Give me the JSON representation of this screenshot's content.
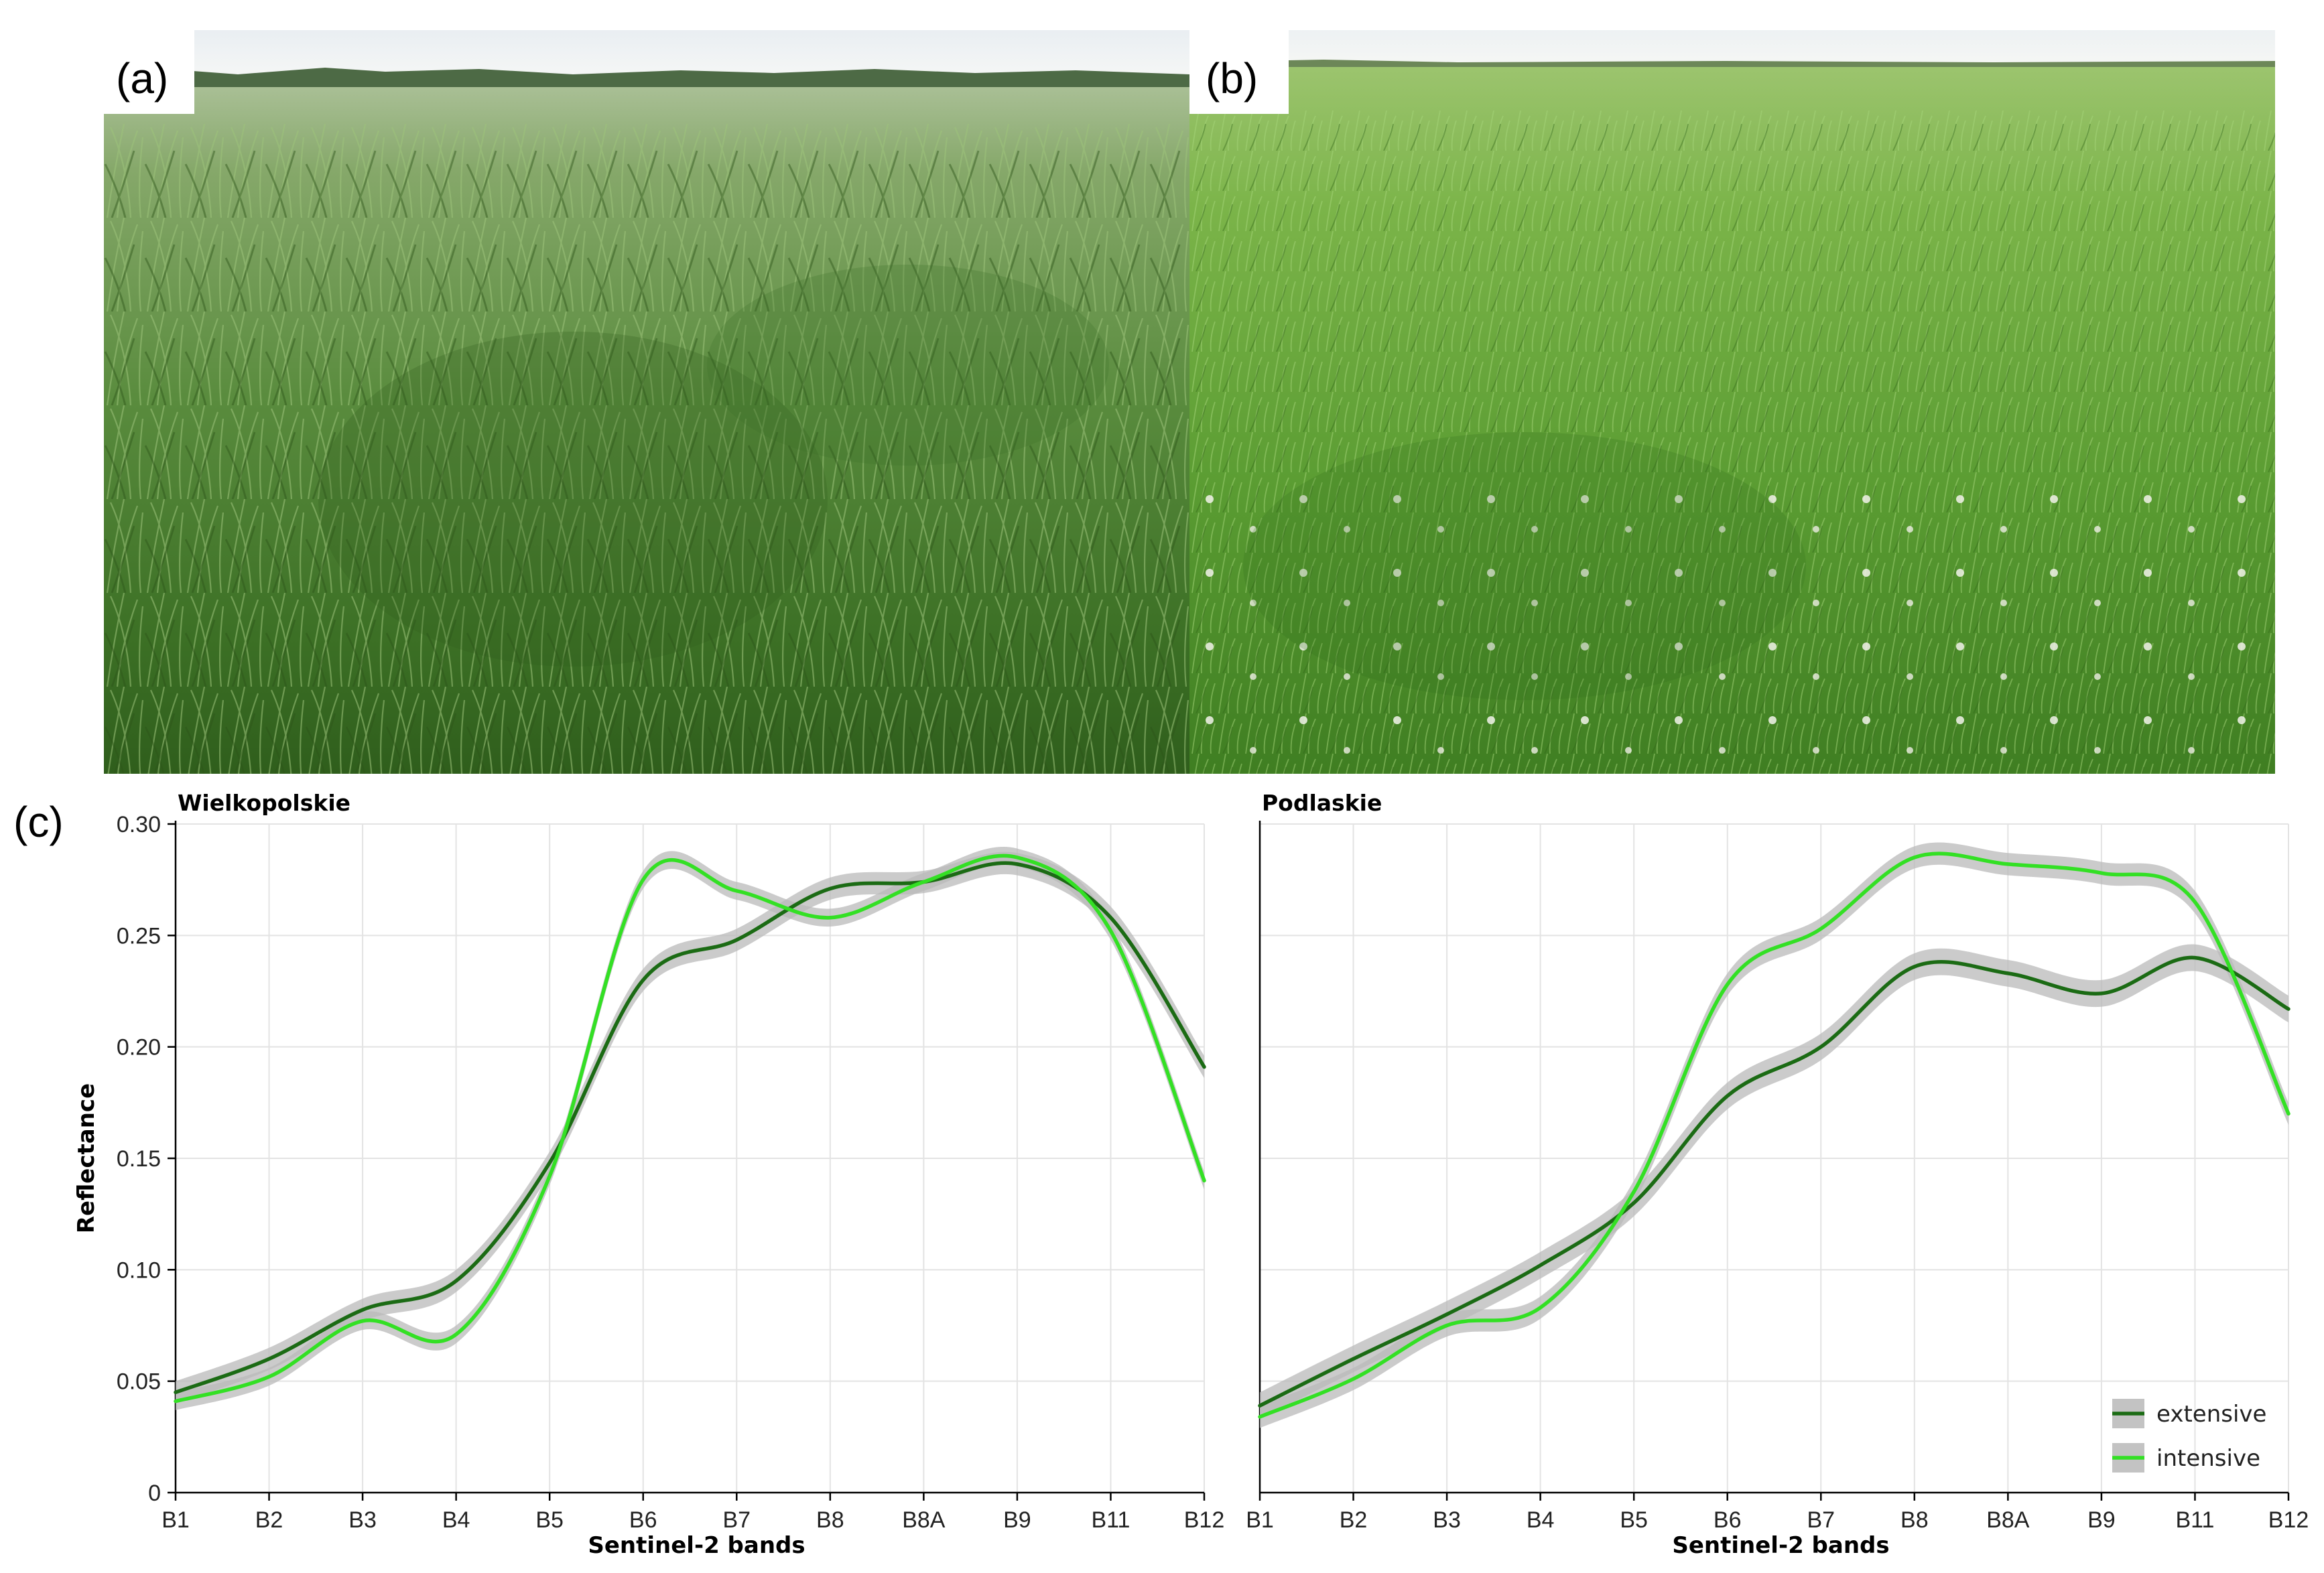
{
  "panels": {
    "a_label": "(a)",
    "b_label": "(b)",
    "c_label": "(c)"
  },
  "colors": {
    "extensive": "#1b6b14",
    "intensive": "#33e024",
    "band": "#b9b9b9",
    "red_tick": "#e0262b",
    "black_tick": "#222222"
  },
  "chart_data": [
    {
      "type": "line",
      "title": "Wielkopolskie",
      "xlabel": "Sentinel-2 bands",
      "ylabel": "Reflectance",
      "categories": [
        "B1",
        "B2",
        "B3",
        "B4",
        "B5",
        "B6",
        "B7",
        "B8",
        "B8A",
        "B9",
        "B11",
        "B12"
      ],
      "red_categories": [
        "B2",
        "B4",
        "B6",
        "B7",
        "B8",
        "B8A",
        "B9",
        "B11",
        "B12"
      ],
      "ylim": [
        0,
        0.3
      ],
      "yticks": [
        "0",
        "0.05",
        "0.10",
        "0.15",
        "0.20",
        "0.25",
        "0.30"
      ],
      "grid": true,
      "series": [
        {
          "name": "extensive",
          "values": [
            0.045,
            0.06,
            0.082,
            0.095,
            0.148,
            0.23,
            0.248,
            0.271,
            0.274,
            0.282,
            0.258,
            0.191
          ],
          "band": 0.005
        },
        {
          "name": "intensive",
          "values": [
            0.041,
            0.052,
            0.077,
            0.071,
            0.142,
            0.275,
            0.27,
            0.258,
            0.274,
            0.285,
            0.252,
            0.14
          ],
          "band": 0.004
        }
      ]
    },
    {
      "type": "line",
      "title": "Podlaskie",
      "xlabel": "Sentinel-2 bands",
      "ylabel": "",
      "categories": [
        "B1",
        "B2",
        "B3",
        "B4",
        "B5",
        "B6",
        "B7",
        "B8",
        "B8A",
        "B9",
        "B11",
        "B12"
      ],
      "red_categories": [
        "B2",
        "B4",
        "B6",
        "B7",
        "B8",
        "B8A",
        "B9",
        "B11",
        "B12"
      ],
      "ylim": [
        0,
        0.3
      ],
      "grid": true,
      "legend": {
        "position": "bottom-right",
        "entries": [
          "extensive",
          "intensive"
        ]
      },
      "series": [
        {
          "name": "extensive",
          "values": [
            0.039,
            0.06,
            0.08,
            0.102,
            0.13,
            0.178,
            0.2,
            0.236,
            0.233,
            0.224,
            0.24,
            0.217
          ],
          "band": 0.006
        },
        {
          "name": "intensive",
          "values": [
            0.034,
            0.051,
            0.075,
            0.083,
            0.135,
            0.228,
            0.253,
            0.285,
            0.282,
            0.278,
            0.265,
            0.17
          ],
          "band": 0.005
        }
      ]
    }
  ]
}
